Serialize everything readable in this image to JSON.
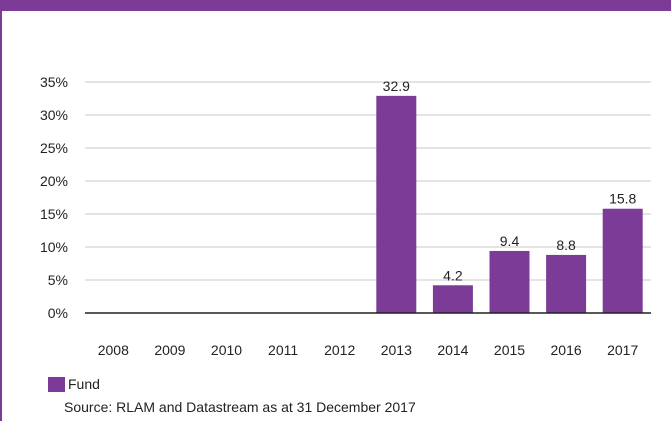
{
  "colors": {
    "accent": "#7b3b96",
    "grid": "#c8c8c8",
    "axis": "#222222"
  },
  "chart_data": {
    "type": "bar",
    "categories": [
      "2008",
      "2009",
      "2010",
      "2011",
      "2012",
      "2013",
      "2014",
      "2015",
      "2016",
      "2017"
    ],
    "series": [
      {
        "name": "Fund",
        "values": [
          0,
          0,
          0,
          0,
          0,
          32.9,
          4.2,
          9.4,
          8.8,
          15.8
        ],
        "data_labels": [
          "",
          "",
          "",
          "",
          "",
          "32.9",
          "4.2",
          "9.4",
          "8.8",
          "15.8"
        ]
      }
    ],
    "yticks": [
      0,
      5,
      10,
      15,
      20,
      25,
      30,
      35
    ],
    "ytick_labels": [
      "0%",
      "5%",
      "10%",
      "15%",
      "20%",
      "25%",
      "30%",
      "35%"
    ],
    "ylim": [
      0,
      35
    ],
    "grid": true,
    "legend_position": "bottom-left"
  },
  "legend": {
    "label": "Fund"
  },
  "footer": {
    "source": "Source: RLAM and Datastream as at 31 December 2017"
  }
}
